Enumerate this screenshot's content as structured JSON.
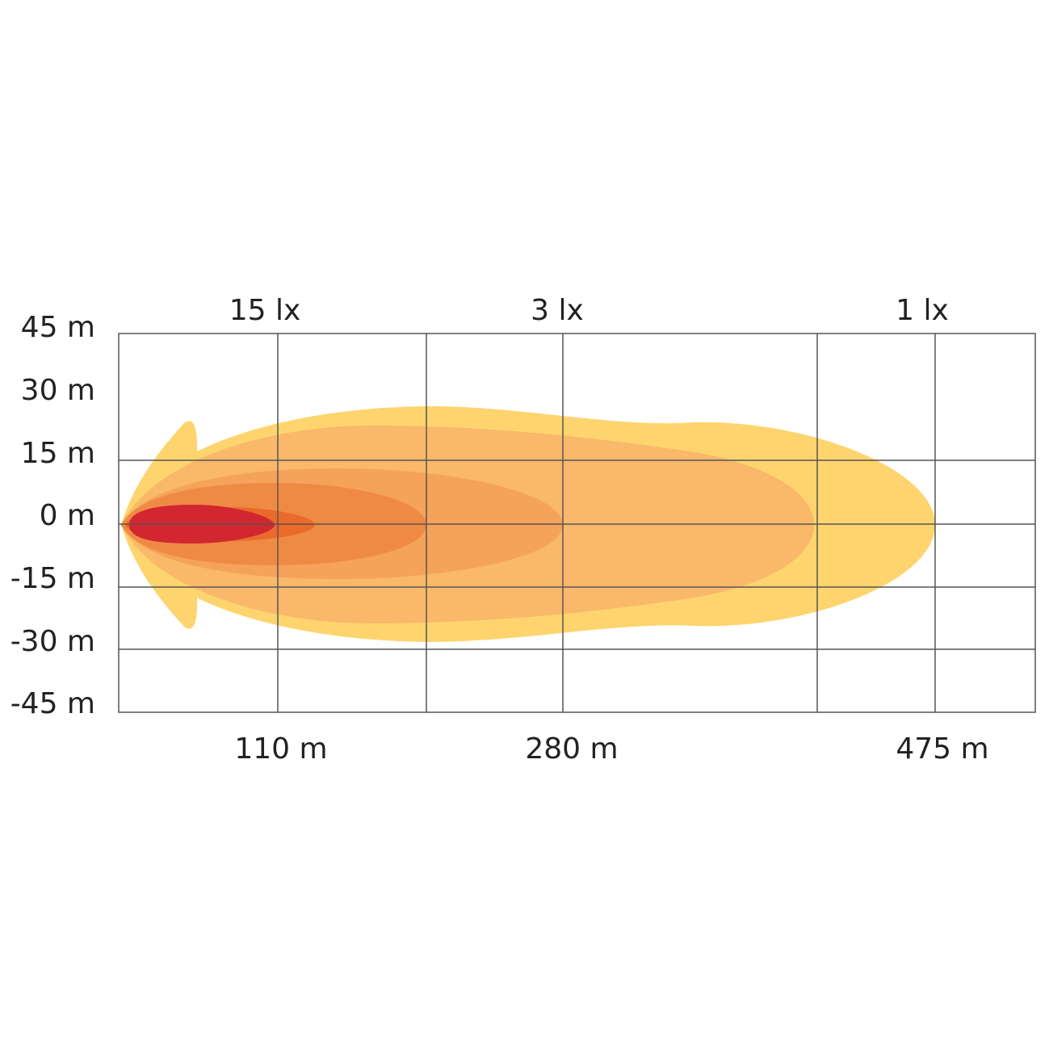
{
  "y_axis_labels": [
    "45 m",
    "30 m",
    "15 m",
    "0 m",
    "-15 m",
    "-30 m",
    "-45 m"
  ],
  "lux_labels": [
    "15 lx",
    "3 lx",
    "1 lx"
  ],
  "distance_labels": [
    "110 m",
    "280 m",
    "475 m"
  ]
}
